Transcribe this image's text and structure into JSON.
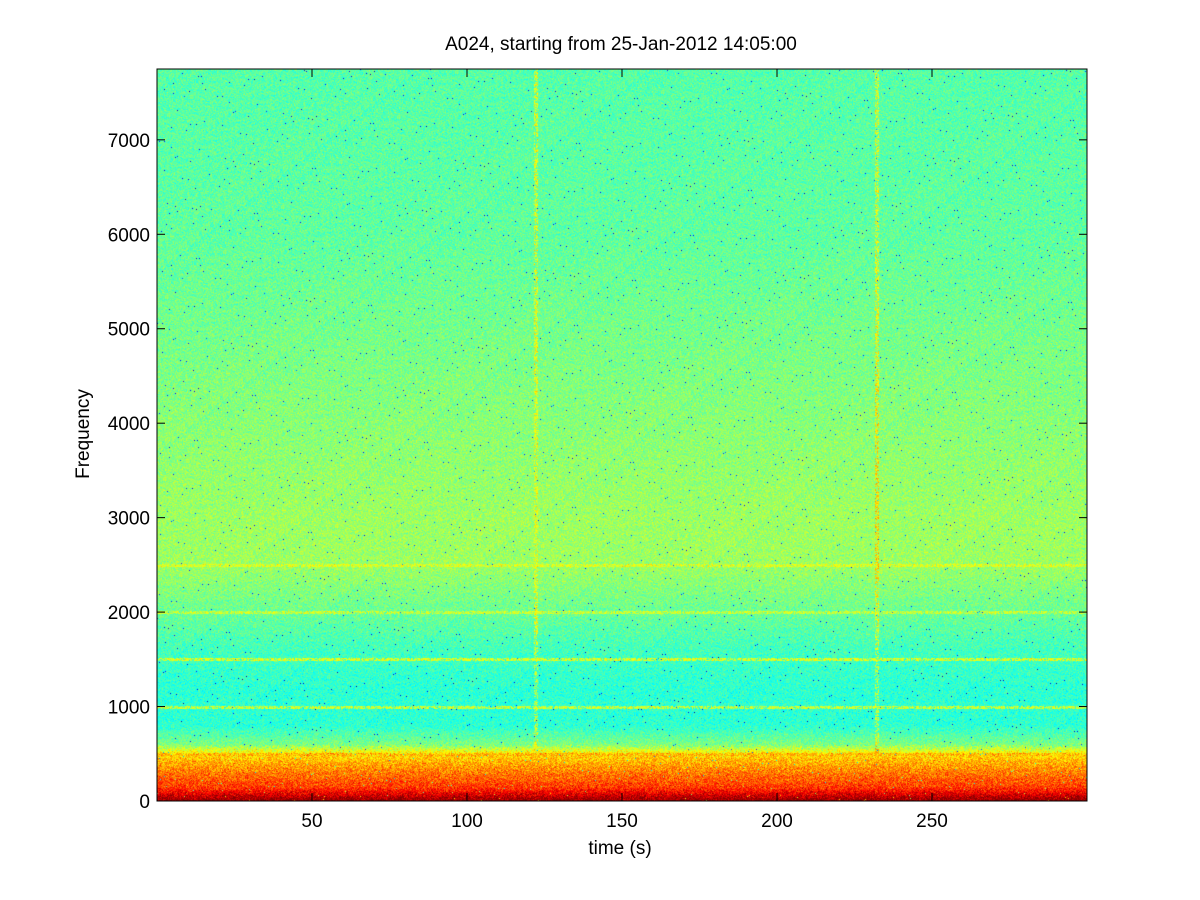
{
  "chart_data": {
    "type": "heatmap",
    "title": "A024, starting from 25-Jan-2012 14:05:00",
    "xlabel": "time (s)",
    "ylabel": "Frequency",
    "xlim": [
      0,
      300
    ],
    "ylim": [
      0,
      7750
    ],
    "x_ticks": [
      50,
      100,
      150,
      200,
      250
    ],
    "y_ticks": [
      0,
      1000,
      2000,
      3000,
      4000,
      5000,
      6000,
      7000
    ],
    "colormap": "jet",
    "intensity_profile": [
      {
        "frequency": 0,
        "level": 1.0
      },
      {
        "frequency": 150,
        "level": 0.82
      },
      {
        "frequency": 300,
        "level": 0.76
      },
      {
        "frequency": 500,
        "level": 0.66
      },
      {
        "frequency": 600,
        "level": 0.5
      },
      {
        "frequency": 800,
        "level": 0.42
      },
      {
        "frequency": 1200,
        "level": 0.42
      },
      {
        "frequency": 1600,
        "level": 0.44
      },
      {
        "frequency": 2500,
        "level": 0.53
      },
      {
        "frequency": 3000,
        "level": 0.53
      },
      {
        "frequency": 4500,
        "level": 0.5
      },
      {
        "frequency": 6000,
        "level": 0.47
      },
      {
        "frequency": 7750,
        "level": 0.46
      }
    ],
    "tonal_lines": [
      {
        "frequency": 500,
        "level": 0.7
      },
      {
        "frequency": 1000,
        "level": 0.58
      },
      {
        "frequency": 1500,
        "level": 0.6
      },
      {
        "frequency": 2000,
        "level": 0.58
      },
      {
        "frequency": 2500,
        "level": 0.6
      }
    ],
    "transients": [
      {
        "time": 122,
        "level": 0.62
      },
      {
        "time": 232,
        "level": 0.7
      }
    ],
    "grid": false,
    "legend": "none"
  }
}
